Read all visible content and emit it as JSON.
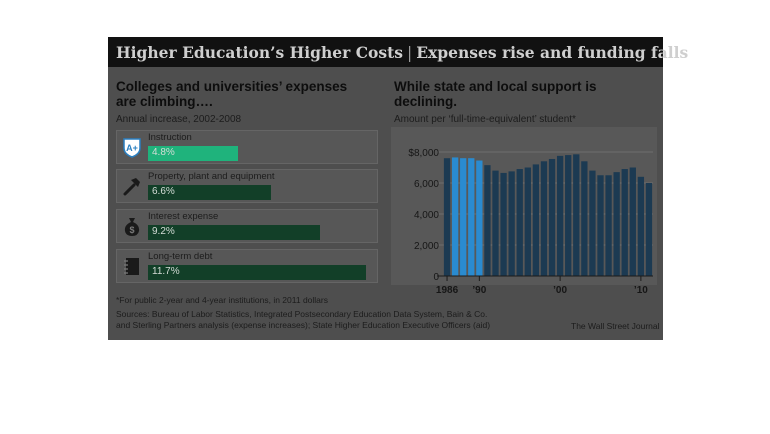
{
  "header": {
    "title_main": "Higher Education’s Higher Costs",
    "separator": "|",
    "title_sub": "Expenses rise and funding falls"
  },
  "left": {
    "subhead": "Colleges and universities’ expenses are climbing….",
    "note": "Annual increase, 2002-2008",
    "bar_max_percent": 12,
    "items": [
      {
        "label": "Instruction",
        "value": 4.8,
        "value_label": "4.8%",
        "icon": "graduation-shield-icon",
        "color": "#1fb37c"
      },
      {
        "label": "Property, plant and equipment",
        "value": 6.6,
        "value_label": "6.6%",
        "icon": "hammer-icon",
        "color": "#123f28"
      },
      {
        "label": "Interest expense",
        "value": 9.2,
        "value_label": "9.2%",
        "icon": "money-bag-icon",
        "color": "#123f28"
      },
      {
        "label": "Long-term debt",
        "value": 11.7,
        "value_label": "11.7%",
        "icon": "notebook-icon",
        "color": "#123f28"
      }
    ]
  },
  "right": {
    "subhead": "While state and local support is declining.",
    "note": "Amount per ‘full-time-equivalent’ student*"
  },
  "chart_data": {
    "type": "bar",
    "title": "While state and local support is declining.",
    "subtitle": "Amount per ‘full-time-equivalent’ student*",
    "x": [
      1986,
      1987,
      1988,
      1989,
      1990,
      1991,
      1992,
      1993,
      1994,
      1995,
      1996,
      1997,
      1998,
      1999,
      2000,
      2001,
      2002,
      2003,
      2004,
      2005,
      2006,
      2007,
      2008,
      2009,
      2010,
      2011
    ],
    "values": [
      7600,
      7650,
      7600,
      7600,
      7450,
      7150,
      6800,
      6650,
      6750,
      6900,
      7000,
      7200,
      7400,
      7550,
      7750,
      7800,
      7850,
      7400,
      6800,
      6500,
      6500,
      6700,
      6900,
      7000,
      6400,
      6000
    ],
    "highlight_years": [
      1987,
      1988,
      1989,
      1990
    ],
    "ylim": [
      0,
      8000
    ],
    "yticks": [
      0,
      2000,
      4000,
      6000,
      8000
    ],
    "ytick_labels": [
      "0",
      "2,000",
      "4,000",
      "6,000",
      "$8,000"
    ],
    "xtick_labels": [
      {
        "year": 1986,
        "label": "1986"
      },
      {
        "year": 1990,
        "label": "’90"
      },
      {
        "year": 2000,
        "label": "’00"
      },
      {
        "year": 2010,
        "label": "’10"
      }
    ],
    "grid": true,
    "colors": {
      "bar": "#1c3a52",
      "highlight": "#2a8bd0",
      "grid": "#6e6e6e"
    }
  },
  "footnote": "*For public 2-year and 4-year institutions, in 2011 dollars",
  "sources": "Sources: Bureau of Labor Statistics, Integrated Postsecondary Education Data System, Bain & Co. and Sterling Partners analysis (expense increases); State Higher Education Executive Officers (aid)",
  "credit": "The Wall Street Journal"
}
